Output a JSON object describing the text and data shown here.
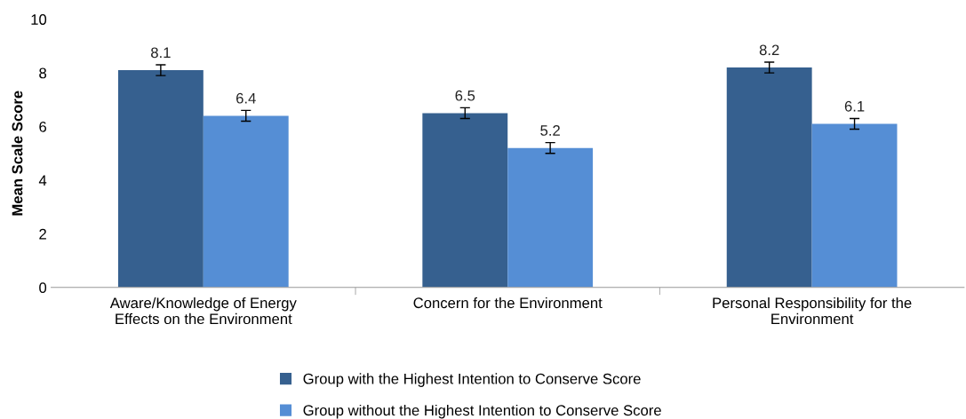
{
  "chart_data": {
    "type": "bar",
    "ylabel": "Mean Scale Score",
    "categories": [
      "Aware/Knowledge of Energy\nEffects on the Environment",
      "Concern for the Environment",
      "Personal Responsibility for the\nEnvironment"
    ],
    "series": [
      {
        "name": "Group with the Highest Intention to Conserve Score",
        "color": "#36608f",
        "values": [
          8.1,
          6.5,
          8.2
        ],
        "errors": [
          0.2,
          0.2,
          0.2
        ]
      },
      {
        "name": "Group without the Highest Intention to Conserve Score",
        "color": "#558ed5",
        "values": [
          6.4,
          5.2,
          6.1
        ],
        "errors": [
          0.2,
          0.2,
          0.2
        ]
      }
    ],
    "ylim": [
      0,
      10
    ],
    "yticks": [
      0,
      2,
      4,
      6,
      8,
      10
    ],
    "data_labels": true,
    "grid": false,
    "legend": "bottom"
  }
}
